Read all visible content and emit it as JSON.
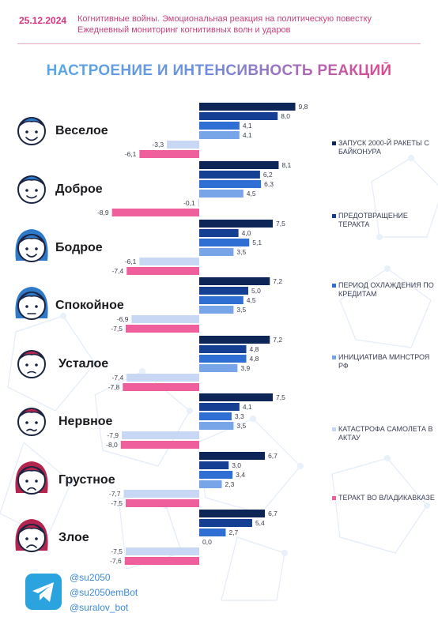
{
  "header": {
    "date": "25.12.2024",
    "subtitle_line1": "Когнитивные войны. Эмоциональная реакция на политическую повестку",
    "subtitle_line2": "Ежедневный мониторинг когнитивных волн и ударов"
  },
  "title": "НАСТРОЕНИЕ И ИНТЕНСИВНОСТЬ РЕАКЦИЙ",
  "chart_data": {
    "type": "bar",
    "orientation": "horizontal",
    "categories": [
      "Веселое",
      "Доброе",
      "Бодрое",
      "Спокойное",
      "Усталое",
      "Нервное",
      "Грустное",
      "Злое"
    ],
    "series": [
      {
        "name": "ЗАПУСК 2000-Й РАКЕТЫ С БАЙКОНУРА",
        "color": "#0d2557",
        "values": [
          9.8,
          8.1,
          7.5,
          7.2,
          7.2,
          7.5,
          6.7,
          6.7
        ]
      },
      {
        "name": "ПРЕДОТВРАЩЕНИЕ ТЕРАКТА",
        "color": "#153f93",
        "values": [
          8.0,
          6.2,
          4.0,
          5.0,
          4.8,
          4.1,
          3.0,
          5.4
        ]
      },
      {
        "name": "ПЕРИОД ОХЛАЖДЕНИЯ ПО КРЕДИТАМ",
        "color": "#2f6fd3",
        "values": [
          4.1,
          6.3,
          5.1,
          4.5,
          4.8,
          3.3,
          3.4,
          2.7
        ]
      },
      {
        "name": "ИНИЦИАТИВА МИНСТРОЯ РФ",
        "color": "#78a4e8",
        "values": [
          4.1,
          4.5,
          3.5,
          3.5,
          3.9,
          3.5,
          2.3,
          0.0
        ]
      },
      {
        "name": "КАТАСТРОФА САМОЛЕТА В АКТАУ",
        "color": "#c8d7f3",
        "values": [
          -3.3,
          -0.1,
          -6.1,
          -6.9,
          -7.4,
          -7.9,
          -7.7,
          -7.5
        ]
      },
      {
        "name": "ТЕРАКТ ВО ВЛАДИКАВКАЗЕ",
        "color": "#ee5f9c",
        "values": [
          -6.1,
          -8.9,
          -7.4,
          -7.5,
          -7.8,
          -8.0,
          -7.5,
          -7.6
        ]
      }
    ],
    "xlim": [
      -10,
      10
    ],
    "grid": false,
    "legend_position": "right",
    "value_labels": true
  },
  "faces": [
    {
      "icon": "smiling-face-icon",
      "color": "#2f79c9"
    },
    {
      "icon": "kind-face-icon",
      "color": "#2f79c9"
    },
    {
      "icon": "cheerful-woman-face-icon",
      "color": "#2f79c9"
    },
    {
      "icon": "calm-woman-face-icon",
      "color": "#2f79c9"
    },
    {
      "icon": "tired-face-icon",
      "color": "#b3244f"
    },
    {
      "icon": "nervous-face-icon",
      "color": "#b3244f"
    },
    {
      "icon": "sad-woman-face-icon",
      "color": "#b3244f"
    },
    {
      "icon": "angry-woman-face-icon",
      "color": "#b3244f"
    }
  ],
  "social": {
    "icon": "telegram-icon",
    "handles": [
      "@su2050",
      "@su2050emBot",
      "@suralov_bot"
    ]
  }
}
